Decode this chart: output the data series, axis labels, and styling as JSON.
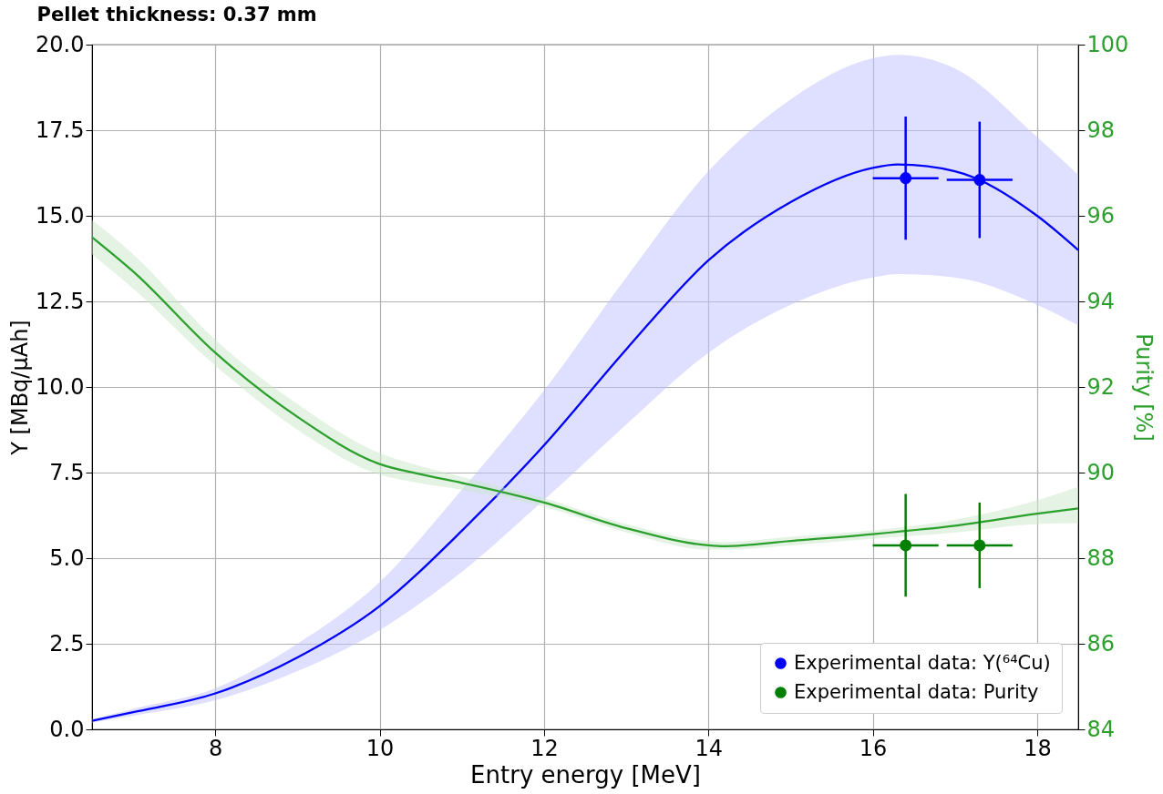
{
  "chart_data": {
    "type": "line",
    "title": "Pellet thickness: 0.37 mm",
    "xlabel": "Entry energy [MeV]",
    "ylabel": "Y [MBq/μAh]",
    "y2label": "Purity [%]",
    "xlim": [
      6.5,
      18.5
    ],
    "xticks": [
      8,
      10,
      12,
      14,
      16,
      18
    ],
    "ylim": [
      0,
      20
    ],
    "yticks": [
      {
        "value": 0,
        "label": "0.0"
      },
      2.5,
      {
        "value": 5,
        "label": "5.0"
      },
      7.5,
      {
        "value": 10,
        "label": "10.0"
      },
      12.5,
      {
        "value": 15,
        "label": "15.0"
      },
      17.5,
      {
        "value": 20,
        "label": "20.0"
      }
    ],
    "y2lim": [
      84,
      100
    ],
    "y2ticks": [
      84,
      86,
      88,
      90,
      92,
      94,
      96,
      98,
      100
    ],
    "grid": true,
    "legend": "bottom right",
    "series": [
      {
        "type": "line",
        "color": "#0000ff",
        "x": [
          6.5,
          7,
          8,
          9,
          10,
          11,
          12,
          13,
          14,
          15,
          16,
          16.3,
          17,
          18,
          18.5
        ],
        "values": [
          0.25,
          0.5,
          1.05,
          2.1,
          3.6,
          5.8,
          8.3,
          11.1,
          13.7,
          15.4,
          16.4,
          16.5,
          16.3,
          15.0,
          14.0
        ],
        "lower": [
          0.2,
          0.4,
          0.85,
          1.7,
          2.9,
          4.6,
          6.7,
          8.9,
          11.0,
          12.4,
          13.2,
          13.3,
          13.2,
          12.4,
          11.8
        ],
        "upper": [
          0.3,
          0.6,
          1.2,
          2.5,
          4.3,
          7.0,
          9.9,
          13.2,
          16.3,
          18.4,
          19.6,
          19.7,
          19.3,
          17.3,
          16.2
        ]
      },
      {
        "type": "line",
        "axis": "y2",
        "color": "#2ca02c",
        "x": [
          6.5,
          7,
          8,
          9,
          10,
          10.5,
          11,
          12,
          13,
          14,
          14.2,
          15,
          16,
          17,
          18,
          18.5
        ],
        "values": [
          95.5,
          94.7,
          92.8,
          91.3,
          90.2,
          89.96,
          89.76,
          89.3,
          88.7,
          88.3,
          88.28,
          88.4,
          88.56,
          88.76,
          89.04,
          89.16
        ],
        "lower": [
          95.1,
          94.3,
          92.5,
          91.0,
          89.95,
          89.75,
          89.6,
          89.2,
          88.6,
          88.2,
          88.2,
          88.3,
          88.45,
          88.6,
          88.8,
          88.82
        ],
        "upper": [
          95.9,
          95.1,
          93.1,
          91.6,
          90.45,
          90.15,
          89.9,
          89.4,
          88.8,
          88.4,
          88.38,
          88.5,
          88.65,
          88.9,
          89.35,
          89.67
        ]
      },
      {
        "type": "scatter",
        "name": "Experimental data: Y(⁶⁴Cu)",
        "color": "#0000ff",
        "marker": "circle",
        "x": [
          16.4,
          17.3
        ],
        "values": [
          16.1,
          16.05
        ],
        "errors": [
          1.8,
          1.7
        ],
        "xerrors": [
          0.4,
          0.4
        ]
      },
      {
        "type": "scatter",
        "axis": "y2",
        "name": "Experimental data: Purity",
        "color": "#008000",
        "marker": "circle",
        "x": [
          16.4,
          17.3
        ],
        "values": [
          88.3,
          88.3
        ],
        "errors": [
          1.2,
          1.0
        ],
        "xerrors": [
          0.4,
          0.4
        ]
      }
    ]
  }
}
